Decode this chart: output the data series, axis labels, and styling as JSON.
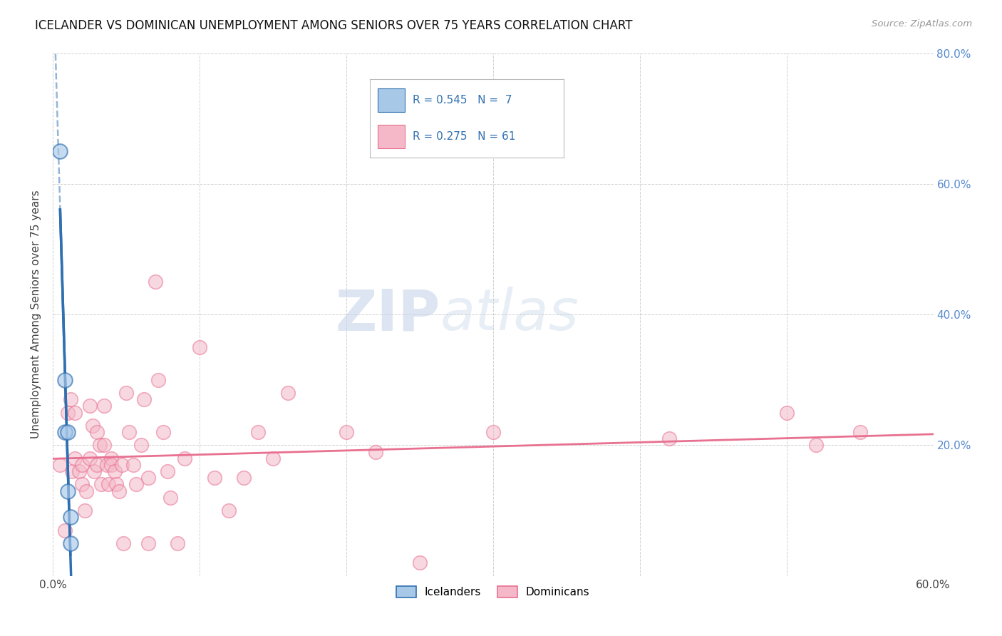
{
  "title": "ICELANDER VS DOMINICAN UNEMPLOYMENT AMONG SENIORS OVER 75 YEARS CORRELATION CHART",
  "source": "Source: ZipAtlas.com",
  "ylabel": "Unemployment Among Seniors over 75 years",
  "xlim": [
    0.0,
    0.6
  ],
  "ylim": [
    0.0,
    0.8
  ],
  "xticks": [
    0.0,
    0.6
  ],
  "xtick_labels": [
    "0.0%",
    "60.0%"
  ],
  "yticks": [
    0.0,
    0.2,
    0.4,
    0.6,
    0.8
  ],
  "ytick_labels": [
    "",
    "20.0%",
    "40.0%",
    "60.0%",
    "80.0%"
  ],
  "grid_xticks": [
    0.0,
    0.1,
    0.2,
    0.3,
    0.4,
    0.5,
    0.6
  ],
  "grid_yticks": [
    0.0,
    0.2,
    0.4,
    0.6,
    0.8
  ],
  "legend_label1": "Icelanders",
  "legend_label2": "Dominicans",
  "R1": 0.545,
  "N1": 7,
  "R2": 0.275,
  "N2": 61,
  "color_blue": "#a8c8e8",
  "color_pink": "#f4b8c8",
  "color_blue_line": "#3070b0",
  "color_blue_dashed": "#80aad0",
  "color_pink_line": "#e87090",
  "watermark_zip": "ZIP",
  "watermark_atlas": "atlas",
  "icelander_x": [
    0.005,
    0.008,
    0.008,
    0.01,
    0.01,
    0.012,
    0.012
  ],
  "icelander_y": [
    0.65,
    0.3,
    0.22,
    0.22,
    0.13,
    0.09,
    0.05
  ],
  "dominican_x": [
    0.005,
    0.008,
    0.01,
    0.012,
    0.013,
    0.015,
    0.015,
    0.018,
    0.02,
    0.02,
    0.022,
    0.023,
    0.025,
    0.025,
    0.027,
    0.028,
    0.03,
    0.03,
    0.032,
    0.033,
    0.035,
    0.035,
    0.037,
    0.038,
    0.04,
    0.04,
    0.042,
    0.043,
    0.045,
    0.047,
    0.048,
    0.05,
    0.052,
    0.055,
    0.057,
    0.06,
    0.062,
    0.065,
    0.065,
    0.07,
    0.072,
    0.075,
    0.078,
    0.08,
    0.085,
    0.09,
    0.1,
    0.11,
    0.12,
    0.13,
    0.14,
    0.15,
    0.16,
    0.2,
    0.22,
    0.25,
    0.3,
    0.42,
    0.5,
    0.52,
    0.55
  ],
  "dominican_y": [
    0.17,
    0.07,
    0.25,
    0.27,
    0.16,
    0.25,
    0.18,
    0.16,
    0.17,
    0.14,
    0.1,
    0.13,
    0.26,
    0.18,
    0.23,
    0.16,
    0.22,
    0.17,
    0.2,
    0.14,
    0.26,
    0.2,
    0.17,
    0.14,
    0.18,
    0.17,
    0.16,
    0.14,
    0.13,
    0.17,
    0.05,
    0.28,
    0.22,
    0.17,
    0.14,
    0.2,
    0.27,
    0.15,
    0.05,
    0.45,
    0.3,
    0.22,
    0.16,
    0.12,
    0.05,
    0.18,
    0.35,
    0.15,
    0.1,
    0.15,
    0.22,
    0.18,
    0.28,
    0.22,
    0.19,
    0.02,
    0.22,
    0.21,
    0.25,
    0.2,
    0.22
  ]
}
